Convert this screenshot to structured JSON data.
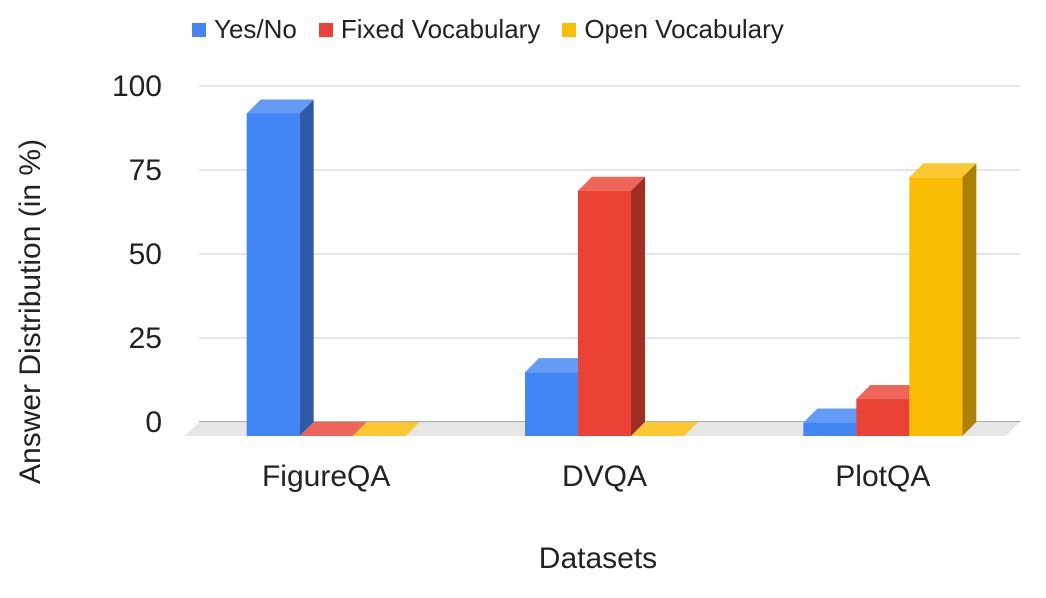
{
  "chart_data": {
    "type": "bar",
    "title": "",
    "xlabel": "Datasets",
    "ylabel": "Answer Distribution (in %)",
    "categories": [
      "FigureQA",
      "DVQA",
      "PlotQA"
    ],
    "series": [
      {
        "name": "Yes/No",
        "values": [
          96,
          19,
          4
        ],
        "color": "#4285F4"
      },
      {
        "name": "Fixed Vocabulary",
        "values": [
          0,
          73,
          11
        ],
        "color": "#EA4335"
      },
      {
        "name": "Open Vocabulary",
        "values": [
          0,
          0,
          77
        ],
        "color": "#FBBC04"
      }
    ],
    "yticks": [
      "0",
      "25",
      "50",
      "75",
      "100"
    ],
    "ylim": [
      0,
      100
    ],
    "grid": true,
    "legend": "top",
    "style": "3d"
  }
}
